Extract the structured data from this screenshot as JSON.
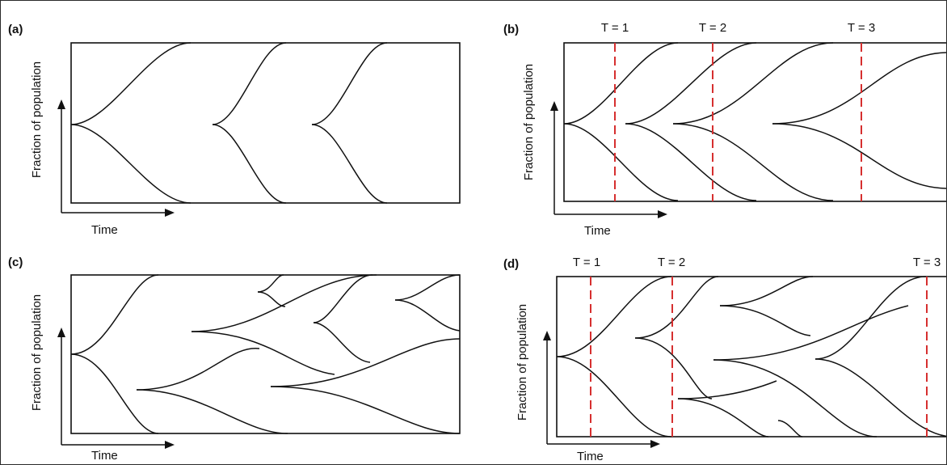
{
  "panels": [
    {
      "key": "a",
      "label": "(a)",
      "y_axis_label": "Fraction of population",
      "x_axis_label": "Time",
      "markers": []
    },
    {
      "key": "b",
      "label": "(b)",
      "y_axis_label": "Fraction of population",
      "x_axis_label": "Time",
      "markers": [
        "T = 1",
        "T = 2",
        "T = 3"
      ]
    },
    {
      "key": "c",
      "label": "(c)",
      "y_axis_label": "Fraction of population",
      "x_axis_label": "Time",
      "markers": []
    },
    {
      "key": "d",
      "label": "(d)",
      "y_axis_label": "Fraction of population",
      "x_axis_label": "Time",
      "markers": [
        "T = 1",
        "T = 2",
        "T = 3"
      ]
    }
  ],
  "colors": {
    "lineage": "#111111",
    "time_marker": "#d62f2f"
  }
}
